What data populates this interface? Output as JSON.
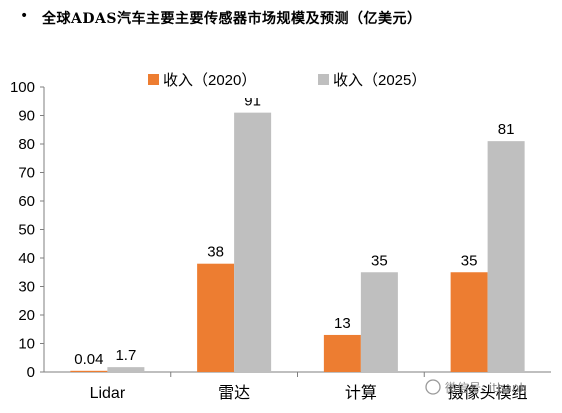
{
  "header": {
    "bullet": "•",
    "title": "全球ADAS汽车主要主要传感器市场规模及预测（亿美元）"
  },
  "watermark": {
    "text": "微信号: itbank"
  },
  "chart_data": {
    "type": "bar",
    "categories": [
      "Lidar",
      "雷达",
      "计算",
      "摄像头模组"
    ],
    "series": [
      {
        "name": "收入（2020）",
        "values": [
          0.04,
          38,
          13,
          35
        ],
        "labels": [
          "0.04",
          "38",
          "13",
          "35"
        ],
        "color": "#ED7D31"
      },
      {
        "name": "收入（2025）",
        "values": [
          1.7,
          91,
          35,
          81
        ],
        "labels": [
          "1.7",
          "91",
          "35",
          "81"
        ],
        "color": "#BFBFBF"
      }
    ],
    "ylim": [
      0,
      100
    ],
    "yticks": [
      "0",
      "10",
      "20",
      "30",
      "40",
      "50",
      "60",
      "70",
      "80",
      "90",
      "100"
    ],
    "legend_position": "top",
    "grid": false
  }
}
